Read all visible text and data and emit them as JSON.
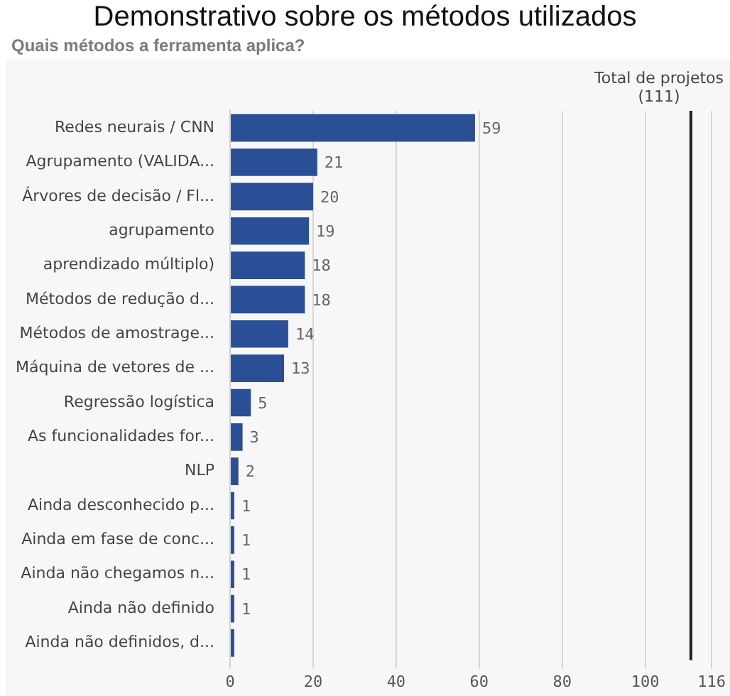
{
  "chart_data": {
    "type": "bar",
    "orientation": "horizontal",
    "title": "Demonstrativo sobre os métodos utilizados",
    "subtitle": "Quais métodos a ferramenta aplica?",
    "categories": [
      "Redes neurais / CNN",
      "Agrupamento (VALIDA...",
      "Árvores de decisão / Fl...",
      "agrupamento",
      "aprendizado múltiplo)",
      "Métodos de redução d...",
      "Métodos de amostrage...",
      "Máquina de vetores de ...",
      "Regressão logística",
      "As funcionalidades for...",
      "NLP",
      "Ainda desconhecido p...",
      "Ainda em fase de conc...",
      "Ainda não chegamos n...",
      "Ainda não definido",
      "Ainda não definidos, d..."
    ],
    "values": [
      59,
      21,
      20,
      19,
      18,
      18,
      14,
      13,
      5,
      3,
      2,
      1,
      1,
      1,
      1,
      1
    ],
    "value_labels": [
      "59",
      "21",
      "20",
      "19",
      "18",
      "18",
      "14",
      "13",
      "5",
      "3",
      "2",
      "1",
      "1",
      "1",
      "1",
      null
    ],
    "color": "#2a4f96",
    "xlim": [
      0,
      116
    ],
    "xticks": [
      0,
      20,
      40,
      60,
      80,
      100,
      116
    ],
    "grid": "x",
    "legend": false,
    "ref_lines": [
      {
        "axis": "x",
        "value": 111,
        "label": "Total de projetos (111)",
        "color": "#222222"
      }
    ]
  }
}
